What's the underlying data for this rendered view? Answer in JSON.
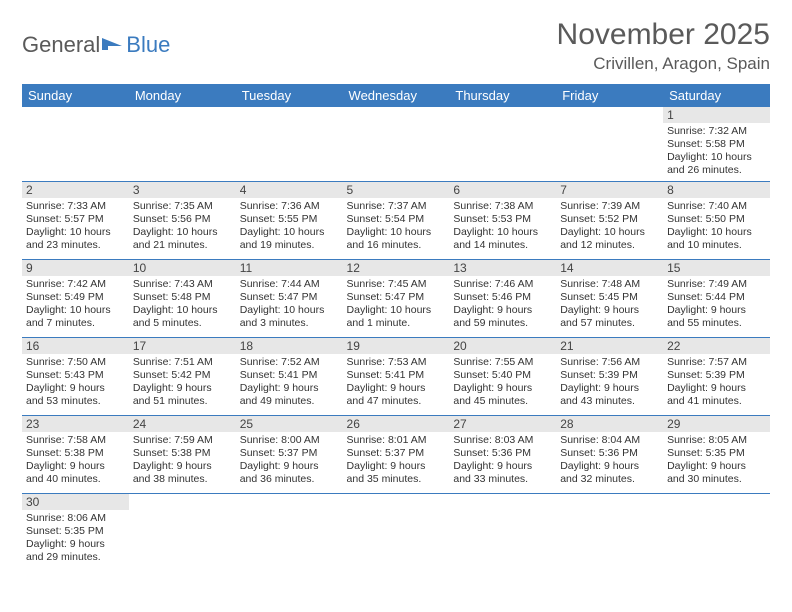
{
  "logo": {
    "text1": "General",
    "text2": "Blue"
  },
  "title": "November 2025",
  "location": "Crivillen, Aragon, Spain",
  "calendar": {
    "type": "table",
    "columns": [
      "Sunday",
      "Monday",
      "Tuesday",
      "Wednesday",
      "Thursday",
      "Friday",
      "Saturday"
    ],
    "header_bg": "#3b7bbf",
    "header_color": "#ffffff",
    "daynum_bg": "#e7e7e7",
    "border_color": "#3b7bbf",
    "text_color": "#333333",
    "font_size_body": 10.5,
    "font_size_header": 13,
    "weeks": [
      [
        null,
        null,
        null,
        null,
        null,
        null,
        {
          "n": "1",
          "sr": "Sunrise: 7:32 AM",
          "ss": "Sunset: 5:58 PM",
          "d1": "Daylight: 10 hours",
          "d2": "and 26 minutes."
        }
      ],
      [
        {
          "n": "2",
          "sr": "Sunrise: 7:33 AM",
          "ss": "Sunset: 5:57 PM",
          "d1": "Daylight: 10 hours",
          "d2": "and 23 minutes."
        },
        {
          "n": "3",
          "sr": "Sunrise: 7:35 AM",
          "ss": "Sunset: 5:56 PM",
          "d1": "Daylight: 10 hours",
          "d2": "and 21 minutes."
        },
        {
          "n": "4",
          "sr": "Sunrise: 7:36 AM",
          "ss": "Sunset: 5:55 PM",
          "d1": "Daylight: 10 hours",
          "d2": "and 19 minutes."
        },
        {
          "n": "5",
          "sr": "Sunrise: 7:37 AM",
          "ss": "Sunset: 5:54 PM",
          "d1": "Daylight: 10 hours",
          "d2": "and 16 minutes."
        },
        {
          "n": "6",
          "sr": "Sunrise: 7:38 AM",
          "ss": "Sunset: 5:53 PM",
          "d1": "Daylight: 10 hours",
          "d2": "and 14 minutes."
        },
        {
          "n": "7",
          "sr": "Sunrise: 7:39 AM",
          "ss": "Sunset: 5:52 PM",
          "d1": "Daylight: 10 hours",
          "d2": "and 12 minutes."
        },
        {
          "n": "8",
          "sr": "Sunrise: 7:40 AM",
          "ss": "Sunset: 5:50 PM",
          "d1": "Daylight: 10 hours",
          "d2": "and 10 minutes."
        }
      ],
      [
        {
          "n": "9",
          "sr": "Sunrise: 7:42 AM",
          "ss": "Sunset: 5:49 PM",
          "d1": "Daylight: 10 hours",
          "d2": "and 7 minutes."
        },
        {
          "n": "10",
          "sr": "Sunrise: 7:43 AM",
          "ss": "Sunset: 5:48 PM",
          "d1": "Daylight: 10 hours",
          "d2": "and 5 minutes."
        },
        {
          "n": "11",
          "sr": "Sunrise: 7:44 AM",
          "ss": "Sunset: 5:47 PM",
          "d1": "Daylight: 10 hours",
          "d2": "and 3 minutes."
        },
        {
          "n": "12",
          "sr": "Sunrise: 7:45 AM",
          "ss": "Sunset: 5:47 PM",
          "d1": "Daylight: 10 hours",
          "d2": "and 1 minute."
        },
        {
          "n": "13",
          "sr": "Sunrise: 7:46 AM",
          "ss": "Sunset: 5:46 PM",
          "d1": "Daylight: 9 hours",
          "d2": "and 59 minutes."
        },
        {
          "n": "14",
          "sr": "Sunrise: 7:48 AM",
          "ss": "Sunset: 5:45 PM",
          "d1": "Daylight: 9 hours",
          "d2": "and 57 minutes."
        },
        {
          "n": "15",
          "sr": "Sunrise: 7:49 AM",
          "ss": "Sunset: 5:44 PM",
          "d1": "Daylight: 9 hours",
          "d2": "and 55 minutes."
        }
      ],
      [
        {
          "n": "16",
          "sr": "Sunrise: 7:50 AM",
          "ss": "Sunset: 5:43 PM",
          "d1": "Daylight: 9 hours",
          "d2": "and 53 minutes."
        },
        {
          "n": "17",
          "sr": "Sunrise: 7:51 AM",
          "ss": "Sunset: 5:42 PM",
          "d1": "Daylight: 9 hours",
          "d2": "and 51 minutes."
        },
        {
          "n": "18",
          "sr": "Sunrise: 7:52 AM",
          "ss": "Sunset: 5:41 PM",
          "d1": "Daylight: 9 hours",
          "d2": "and 49 minutes."
        },
        {
          "n": "19",
          "sr": "Sunrise: 7:53 AM",
          "ss": "Sunset: 5:41 PM",
          "d1": "Daylight: 9 hours",
          "d2": "and 47 minutes."
        },
        {
          "n": "20",
          "sr": "Sunrise: 7:55 AM",
          "ss": "Sunset: 5:40 PM",
          "d1": "Daylight: 9 hours",
          "d2": "and 45 minutes."
        },
        {
          "n": "21",
          "sr": "Sunrise: 7:56 AM",
          "ss": "Sunset: 5:39 PM",
          "d1": "Daylight: 9 hours",
          "d2": "and 43 minutes."
        },
        {
          "n": "22",
          "sr": "Sunrise: 7:57 AM",
          "ss": "Sunset: 5:39 PM",
          "d1": "Daylight: 9 hours",
          "d2": "and 41 minutes."
        }
      ],
      [
        {
          "n": "23",
          "sr": "Sunrise: 7:58 AM",
          "ss": "Sunset: 5:38 PM",
          "d1": "Daylight: 9 hours",
          "d2": "and 40 minutes."
        },
        {
          "n": "24",
          "sr": "Sunrise: 7:59 AM",
          "ss": "Sunset: 5:38 PM",
          "d1": "Daylight: 9 hours",
          "d2": "and 38 minutes."
        },
        {
          "n": "25",
          "sr": "Sunrise: 8:00 AM",
          "ss": "Sunset: 5:37 PM",
          "d1": "Daylight: 9 hours",
          "d2": "and 36 minutes."
        },
        {
          "n": "26",
          "sr": "Sunrise: 8:01 AM",
          "ss": "Sunset: 5:37 PM",
          "d1": "Daylight: 9 hours",
          "d2": "and 35 minutes."
        },
        {
          "n": "27",
          "sr": "Sunrise: 8:03 AM",
          "ss": "Sunset: 5:36 PM",
          "d1": "Daylight: 9 hours",
          "d2": "and 33 minutes."
        },
        {
          "n": "28",
          "sr": "Sunrise: 8:04 AM",
          "ss": "Sunset: 5:36 PM",
          "d1": "Daylight: 9 hours",
          "d2": "and 32 minutes."
        },
        {
          "n": "29",
          "sr": "Sunrise: 8:05 AM",
          "ss": "Sunset: 5:35 PM",
          "d1": "Daylight: 9 hours",
          "d2": "and 30 minutes."
        }
      ],
      [
        {
          "n": "30",
          "sr": "Sunrise: 8:06 AM",
          "ss": "Sunset: 5:35 PM",
          "d1": "Daylight: 9 hours",
          "d2": "and 29 minutes."
        },
        null,
        null,
        null,
        null,
        null,
        null
      ]
    ]
  }
}
